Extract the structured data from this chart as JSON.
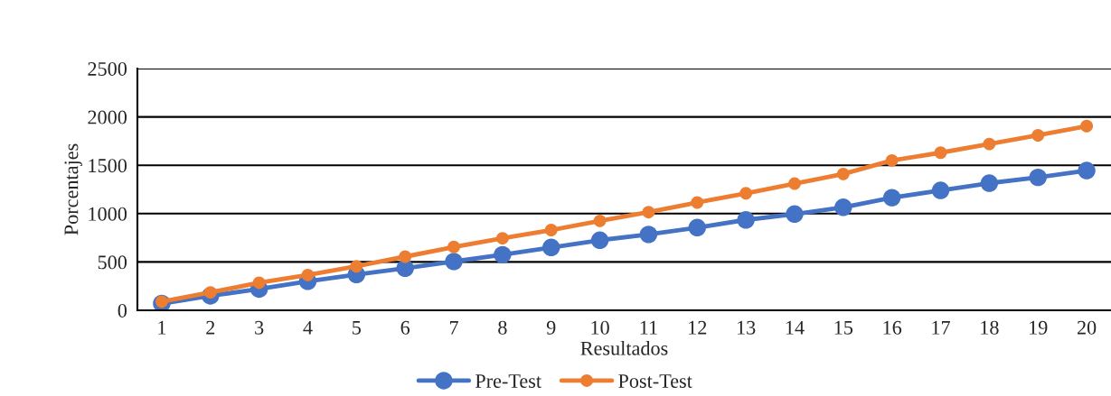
{
  "chart_data": {
    "type": "line",
    "xlabel": "Resultados",
    "ylabel": "Porcentajes",
    "categories": [
      "1",
      "2",
      "3",
      "4",
      "5",
      "6",
      "7",
      "8",
      "9",
      "10",
      "11",
      "12",
      "13",
      "14",
      "15",
      "16",
      "17",
      "18",
      "19",
      "20"
    ],
    "series": [
      {
        "name": "Pre-Test",
        "color": "#4472c4",
        "values": [
          70,
          150,
          220,
          300,
          370,
          435,
          505,
          575,
          650,
          725,
          785,
          855,
          935,
          995,
          1065,
          1165,
          1240,
          1315,
          1375,
          1445
        ]
      },
      {
        "name": "Post-Test",
        "color": "#ed7d31",
        "values": [
          90,
          185,
          285,
          365,
          455,
          555,
          655,
          745,
          830,
          925,
          1015,
          1115,
          1210,
          1310,
          1410,
          1550,
          1630,
          1720,
          1810,
          1905
        ]
      }
    ],
    "ylim": [
      0,
      2500
    ],
    "yticks": [
      0,
      500,
      1000,
      1500,
      2000,
      2500
    ],
    "grid": "y",
    "legend": "bottom",
    "marker": "circle",
    "line_style": "solid"
  }
}
